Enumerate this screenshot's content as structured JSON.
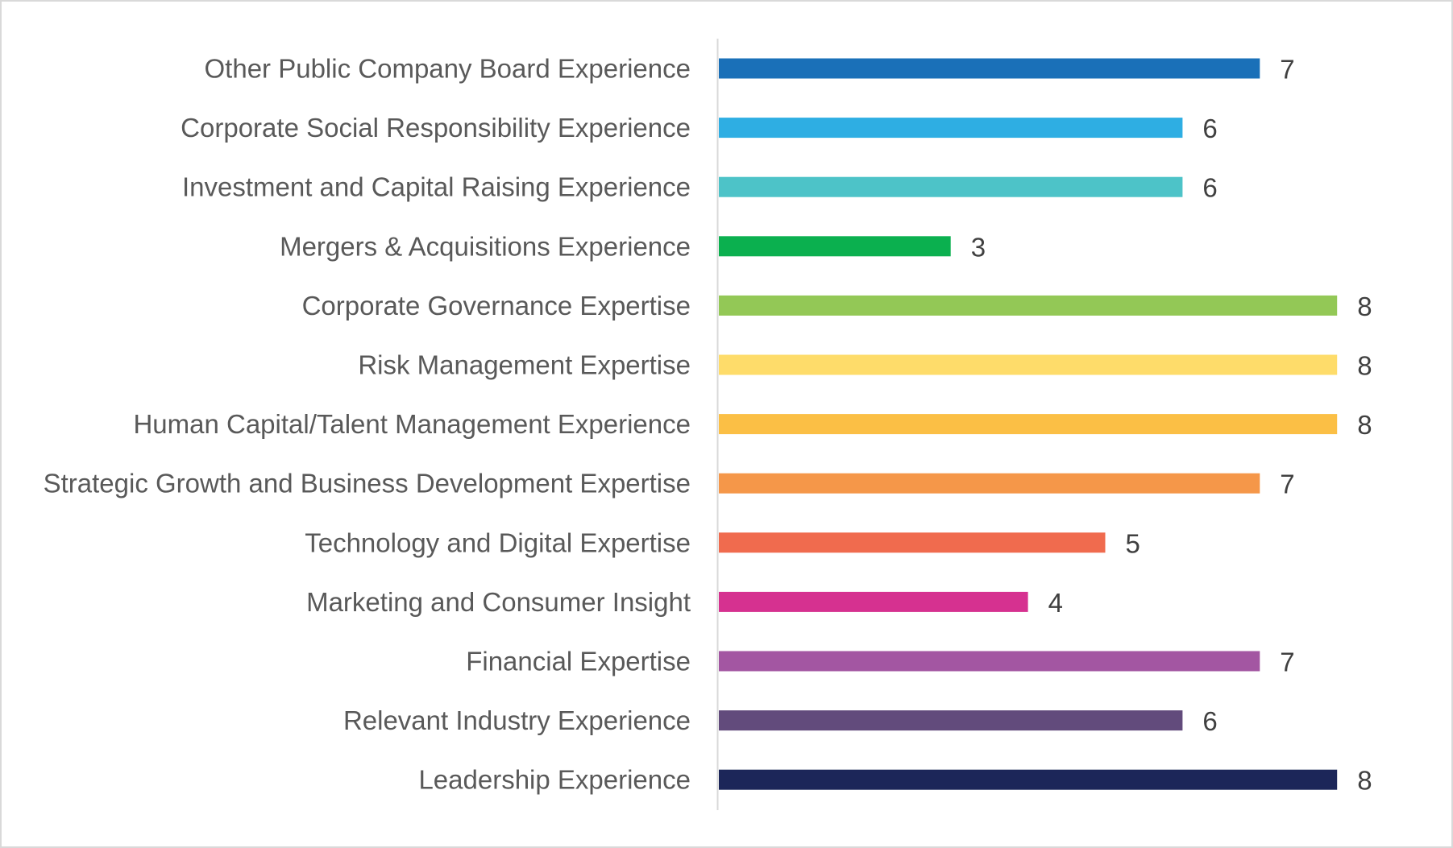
{
  "chart_data": {
    "type": "bar",
    "orientation": "horizontal",
    "title": "",
    "xlabel": "",
    "ylabel": "",
    "xlim": [
      0,
      8
    ],
    "grid": false,
    "legend": "none",
    "data_labels": true,
    "categories": [
      "Other Public Company Board Experience",
      "Corporate Social Responsibility Experience",
      "Investment and Capital Raising Experience",
      "Mergers & Acquisitions Experience",
      "Corporate Governance Expertise",
      "Risk Management Expertise",
      "Human Capital/Talent Management Experience",
      "Strategic Growth and Business Development Expertise",
      "Technology and Digital Expertise",
      "Marketing and Consumer Insight",
      "Financial Expertise",
      "Relevant Industry Experience",
      "Leadership Experience"
    ],
    "values": [
      7,
      6,
      6,
      3,
      8,
      8,
      8,
      7,
      5,
      4,
      7,
      6,
      8
    ],
    "value_labels": [
      "7",
      "6",
      "6",
      "3",
      "8",
      "8",
      "8",
      "7",
      "5",
      "4",
      "7",
      "6",
      "8"
    ],
    "colors": [
      "#1a70b8",
      "#2eaee3",
      "#4dc3c8",
      "#0bb04f",
      "#93c856",
      "#fedc6a",
      "#fbbf45",
      "#f59749",
      "#f06b4e",
      "#d63190",
      "#a356a2",
      "#624b7c",
      "#1c2659"
    ]
  }
}
